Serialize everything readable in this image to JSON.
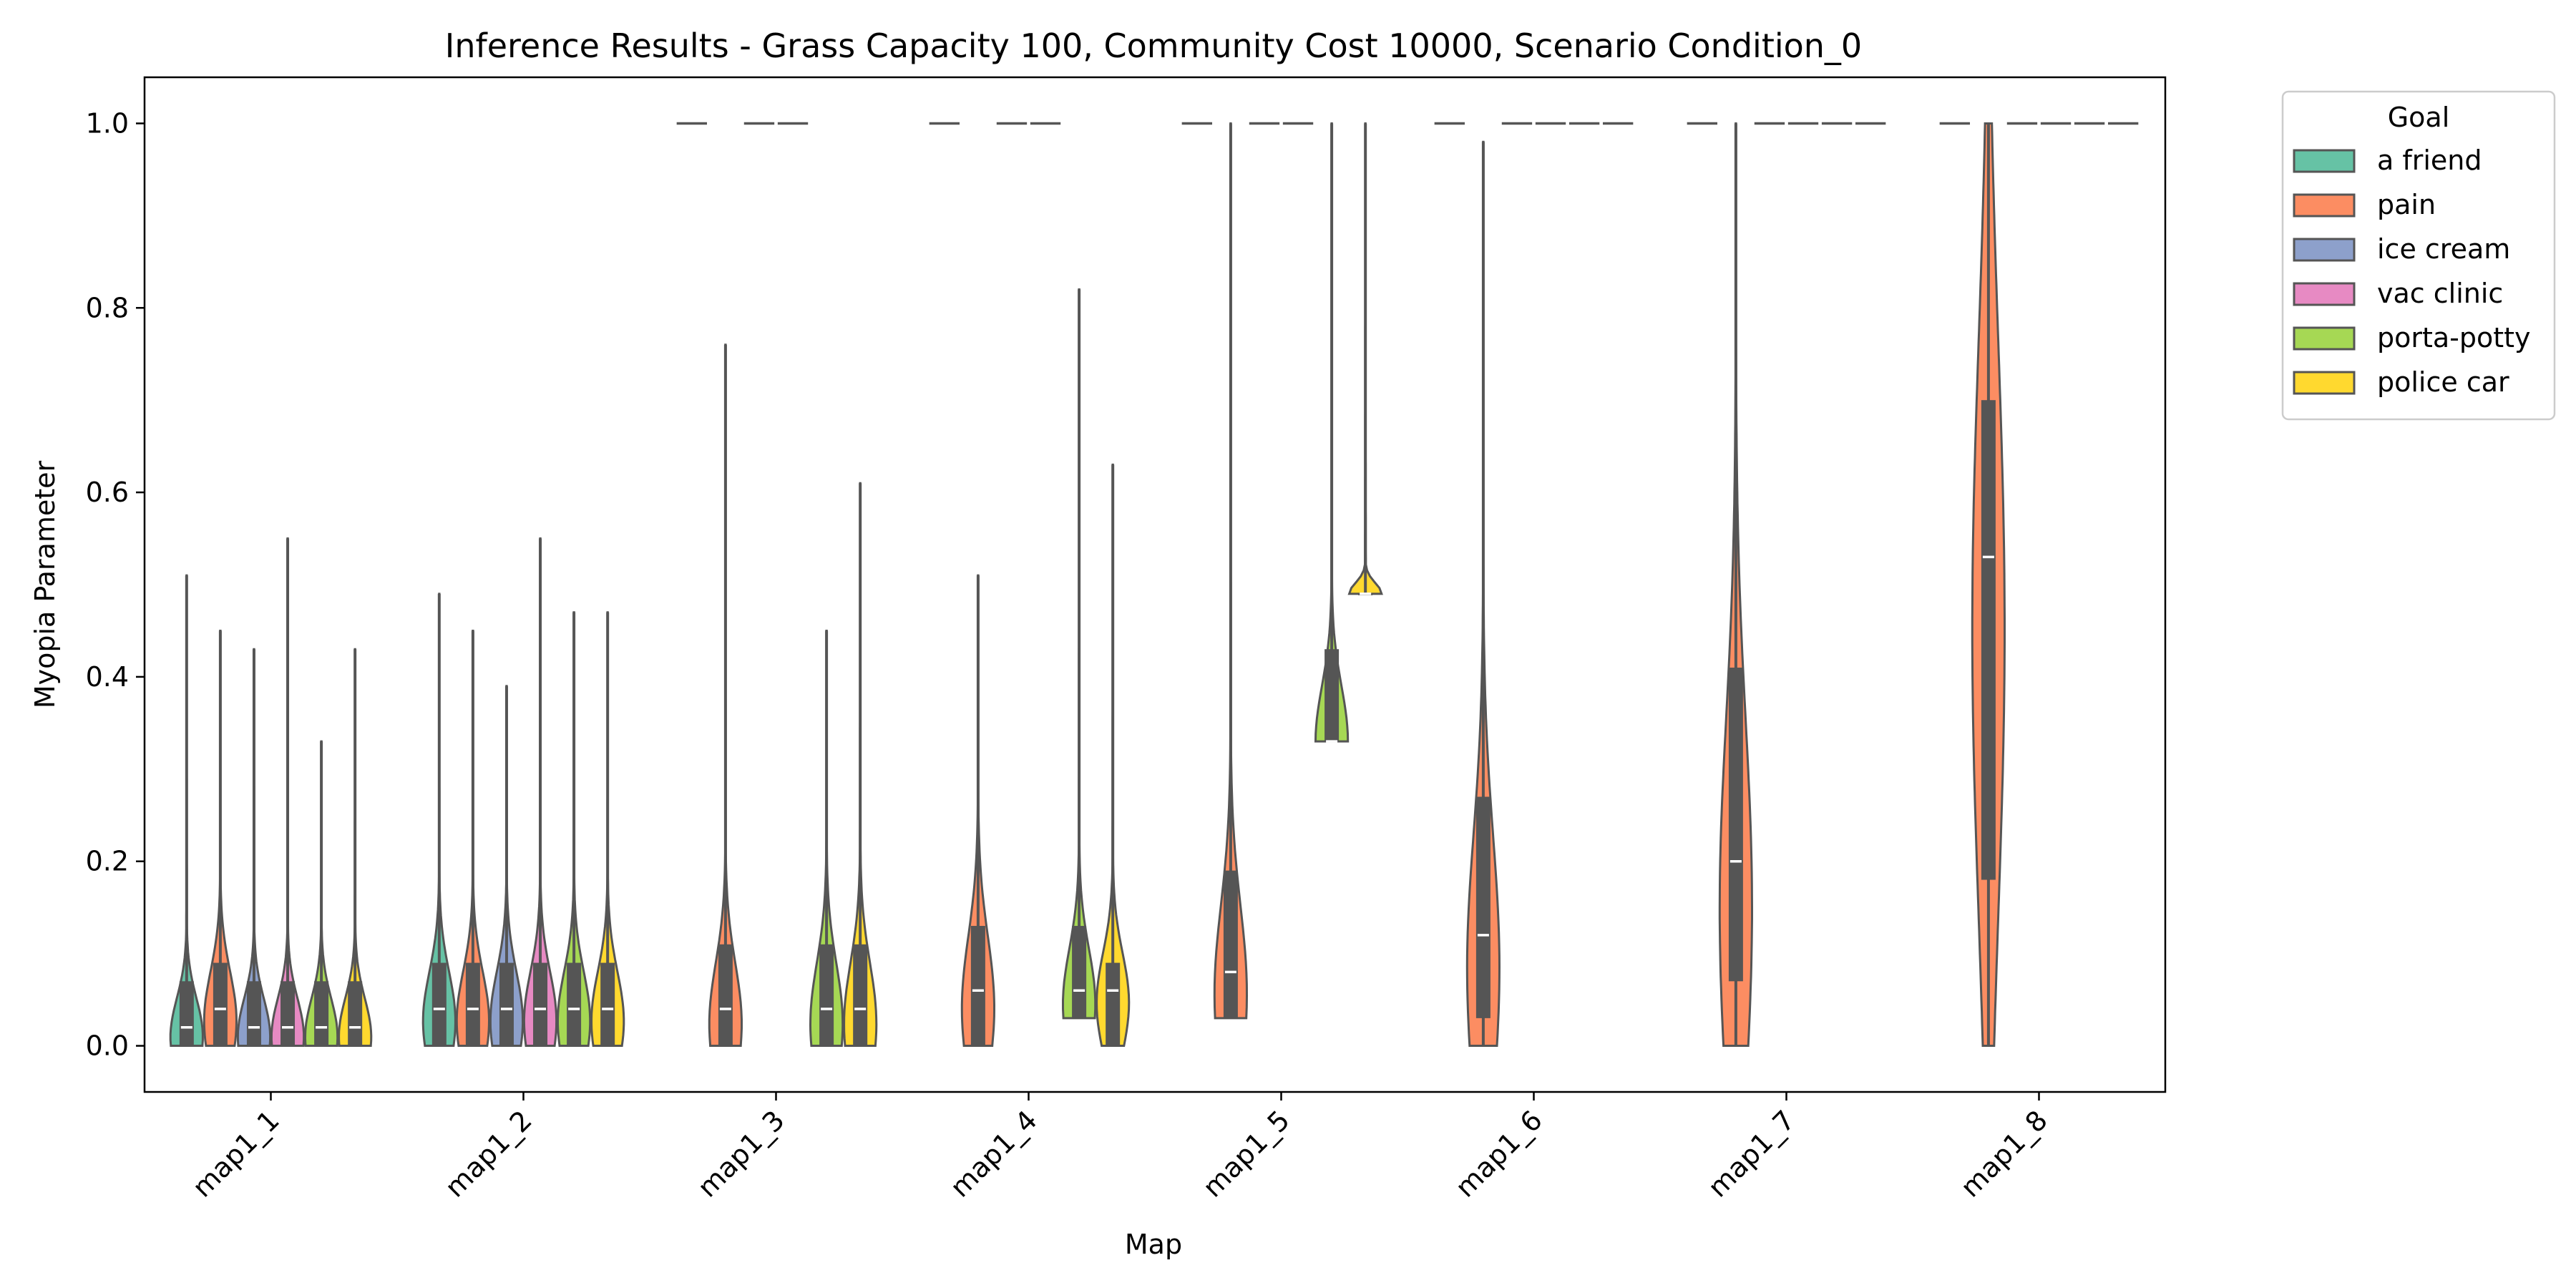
{
  "chart_data": {
    "type": "violin",
    "title": "Inference Results - Grass Capacity 100, Community Cost 10000, Scenario Condition_0",
    "xlabel": "Map",
    "ylabel": "Myopia Parameter",
    "ylim": [
      -0.05,
      1.05
    ],
    "yticks": [
      "0.0",
      "0.2",
      "0.4",
      "0.6",
      "0.8",
      "1.0"
    ],
    "categories": [
      "map1_1",
      "map1_2",
      "map1_3",
      "map1_4",
      "map1_5",
      "map1_6",
      "map1_7",
      "map1_8"
    ],
    "grid": false,
    "legend": {
      "title": "Goal",
      "position": "outside-top-right",
      "entries": [
        "a friend",
        "pain",
        "ice cream",
        "vac clinic",
        "porta-potty",
        "police car"
      ]
    },
    "series": [
      {
        "name": "a friend",
        "color": "#66c2a5",
        "values": [
          {
            "min": 0.0,
            "q1": 0.0,
            "median": 0.02,
            "q3": 0.07,
            "max": 0.51
          },
          {
            "min": 0.0,
            "q1": 0.0,
            "median": 0.04,
            "q3": 0.09,
            "max": 0.49
          },
          {
            "min": 1.0,
            "q1": 1.0,
            "median": 1.0,
            "q3": 1.0,
            "max": 1.0
          },
          {
            "min": 1.0,
            "q1": 1.0,
            "median": 1.0,
            "q3": 1.0,
            "max": 1.0
          },
          {
            "min": 1.0,
            "q1": 1.0,
            "median": 1.0,
            "q3": 1.0,
            "max": 1.0
          },
          {
            "min": 1.0,
            "q1": 1.0,
            "median": 1.0,
            "q3": 1.0,
            "max": 1.0
          },
          {
            "min": 1.0,
            "q1": 1.0,
            "median": 1.0,
            "q3": 1.0,
            "max": 1.0
          },
          {
            "min": 1.0,
            "q1": 1.0,
            "median": 1.0,
            "q3": 1.0,
            "max": 1.0
          }
        ]
      },
      {
        "name": "pain",
        "color": "#fc8d62",
        "values": [
          {
            "min": 0.0,
            "q1": 0.0,
            "median": 0.04,
            "q3": 0.09,
            "max": 0.45
          },
          {
            "min": 0.0,
            "q1": 0.0,
            "median": 0.04,
            "q3": 0.09,
            "max": 0.45
          },
          {
            "min": 0.0,
            "q1": 0.0,
            "median": 0.04,
            "q3": 0.11,
            "max": 0.76
          },
          {
            "min": 0.0,
            "q1": 0.0,
            "median": 0.06,
            "q3": 0.13,
            "max": 0.51
          },
          {
            "min": 0.03,
            "q1": 0.03,
            "median": 0.08,
            "q3": 0.19,
            "max": 1.0
          },
          {
            "min": 0.0,
            "q1": 0.03,
            "median": 0.12,
            "q3": 0.27,
            "max": 0.98
          },
          {
            "min": 0.0,
            "q1": 0.07,
            "median": 0.2,
            "q3": 0.41,
            "max": 1.0
          },
          {
            "min": 0.0,
            "q1": 0.18,
            "median": 0.53,
            "q3": 0.7,
            "max": 1.0
          }
        ]
      },
      {
        "name": "ice cream",
        "color": "#8da0cb",
        "values": [
          {
            "min": 0.0,
            "q1": 0.0,
            "median": 0.02,
            "q3": 0.07,
            "max": 0.43
          },
          {
            "min": 0.0,
            "q1": 0.0,
            "median": 0.04,
            "q3": 0.09,
            "max": 0.39
          },
          {
            "min": 1.0,
            "q1": 1.0,
            "median": 1.0,
            "q3": 1.0,
            "max": 1.0
          },
          {
            "min": 1.0,
            "q1": 1.0,
            "median": 1.0,
            "q3": 1.0,
            "max": 1.0
          },
          {
            "min": 1.0,
            "q1": 1.0,
            "median": 1.0,
            "q3": 1.0,
            "max": 1.0
          },
          {
            "min": 1.0,
            "q1": 1.0,
            "median": 1.0,
            "q3": 1.0,
            "max": 1.0
          },
          {
            "min": 1.0,
            "q1": 1.0,
            "median": 1.0,
            "q3": 1.0,
            "max": 1.0
          },
          {
            "min": 1.0,
            "q1": 1.0,
            "median": 1.0,
            "q3": 1.0,
            "max": 1.0
          }
        ]
      },
      {
        "name": "vac clinic",
        "color": "#e78ac3",
        "values": [
          {
            "min": 0.0,
            "q1": 0.0,
            "median": 0.02,
            "q3": 0.07,
            "max": 0.55
          },
          {
            "min": 0.0,
            "q1": 0.0,
            "median": 0.04,
            "q3": 0.09,
            "max": 0.55
          },
          {
            "min": 1.0,
            "q1": 1.0,
            "median": 1.0,
            "q3": 1.0,
            "max": 1.0
          },
          {
            "min": 1.0,
            "q1": 1.0,
            "median": 1.0,
            "q3": 1.0,
            "max": 1.0
          },
          {
            "min": 1.0,
            "q1": 1.0,
            "median": 1.0,
            "q3": 1.0,
            "max": 1.0
          },
          {
            "min": 1.0,
            "q1": 1.0,
            "median": 1.0,
            "q3": 1.0,
            "max": 1.0
          },
          {
            "min": 1.0,
            "q1": 1.0,
            "median": 1.0,
            "q3": 1.0,
            "max": 1.0
          },
          {
            "min": 1.0,
            "q1": 1.0,
            "median": 1.0,
            "q3": 1.0,
            "max": 1.0
          }
        ]
      },
      {
        "name": "porta-potty",
        "color": "#a6d854",
        "values": [
          {
            "min": 0.0,
            "q1": 0.0,
            "median": 0.02,
            "q3": 0.07,
            "max": 0.33
          },
          {
            "min": 0.0,
            "q1": 0.0,
            "median": 0.04,
            "q3": 0.09,
            "max": 0.47
          },
          {
            "min": 0.0,
            "q1": 0.0,
            "median": 0.04,
            "q3": 0.11,
            "max": 0.45
          },
          {
            "min": 0.03,
            "q1": 0.03,
            "median": 0.06,
            "q3": 0.13,
            "max": 0.82
          },
          {
            "min": 0.33,
            "q1": 0.33,
            "median": 0.33,
            "q3": 0.43,
            "max": 1.0
          },
          {
            "min": 1.0,
            "q1": 1.0,
            "median": 1.0,
            "q3": 1.0,
            "max": 1.0
          },
          {
            "min": 1.0,
            "q1": 1.0,
            "median": 1.0,
            "q3": 1.0,
            "max": 1.0
          },
          {
            "min": 1.0,
            "q1": 1.0,
            "median": 1.0,
            "q3": 1.0,
            "max": 1.0
          }
        ]
      },
      {
        "name": "police car",
        "color": "#ffd92f",
        "values": [
          {
            "min": 0.0,
            "q1": 0.0,
            "median": 0.02,
            "q3": 0.07,
            "max": 0.43
          },
          {
            "min": 0.0,
            "q1": 0.0,
            "median": 0.04,
            "q3": 0.09,
            "max": 0.47
          },
          {
            "min": 0.0,
            "q1": 0.0,
            "median": 0.04,
            "q3": 0.11,
            "max": 0.61
          },
          {
            "min": 0.0,
            "q1": 0.0,
            "median": 0.06,
            "q3": 0.09,
            "max": 0.63
          },
          {
            "min": 0.49,
            "q1": 0.49,
            "median": 0.49,
            "q3": 0.49,
            "max": 1.0
          },
          {
            "min": 1.0,
            "q1": 1.0,
            "median": 1.0,
            "q3": 1.0,
            "max": 1.0
          },
          {
            "min": 1.0,
            "q1": 1.0,
            "median": 1.0,
            "q3": 1.0,
            "max": 1.0
          },
          {
            "min": 1.0,
            "q1": 1.0,
            "median": 1.0,
            "q3": 1.0,
            "max": 1.0
          }
        ]
      }
    ]
  }
}
